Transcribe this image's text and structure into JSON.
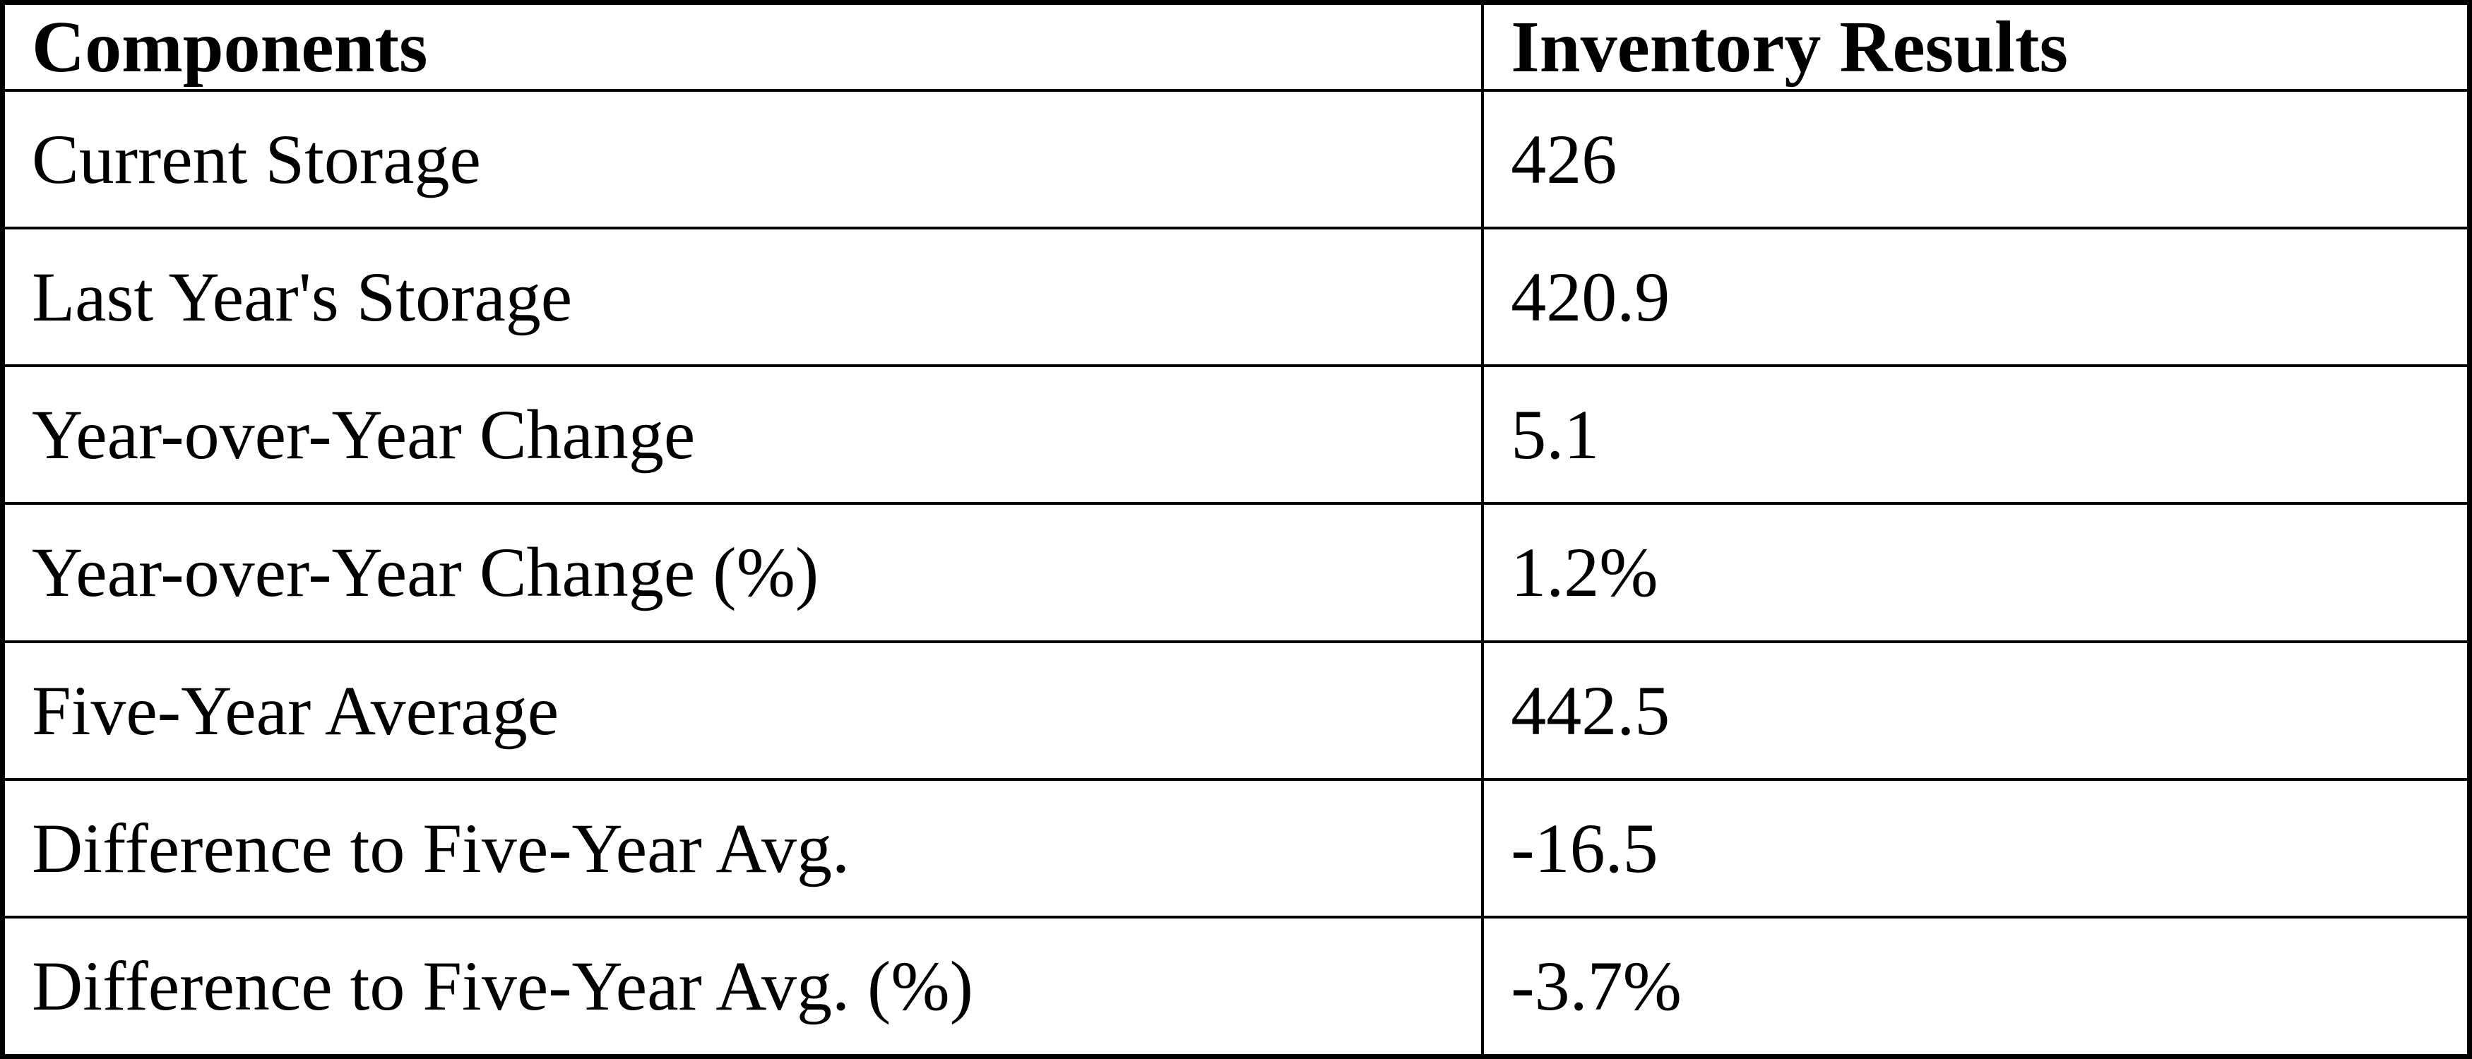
{
  "table": {
    "headers": [
      "Components",
      "Inventory Results"
    ],
    "rows": [
      [
        "Current Storage",
        "426"
      ],
      [
        "Last Year's Storage",
        "420.9"
      ],
      [
        "Year-over-Year Change",
        "5.1"
      ],
      [
        "Year-over-Year Change (%)",
        "1.2%"
      ],
      [
        "Five-Year Average",
        "442.5"
      ],
      [
        "Difference to Five-Year Avg.",
        "-16.5"
      ],
      [
        "Difference to Five-Year Avg. (%)",
        "-3.7%"
      ]
    ]
  },
  "colors": {
    "border": "#000000",
    "background": "#ffffff",
    "text": "#000000"
  },
  "chart_data": {
    "type": "table",
    "title": "",
    "columns": [
      "Components",
      "Inventory Results"
    ],
    "rows": [
      {
        "component": "Current Storage",
        "value": 426
      },
      {
        "component": "Last Year's Storage",
        "value": 420.9
      },
      {
        "component": "Year-over-Year Change",
        "value": 5.1
      },
      {
        "component": "Year-over-Year Change (%)",
        "value": "1.2%"
      },
      {
        "component": "Five-Year Average",
        "value": 442.5
      },
      {
        "component": "Difference to Five-Year Avg.",
        "value": -16.5
      },
      {
        "component": "Difference to Five-Year Avg. (%)",
        "value": "-3.7%"
      }
    ]
  }
}
